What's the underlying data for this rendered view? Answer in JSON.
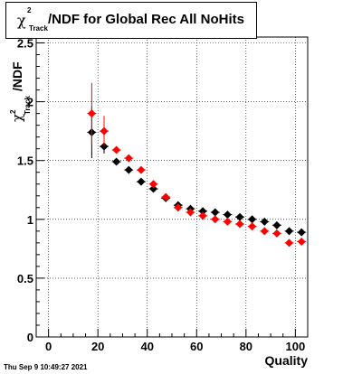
{
  "title": {
    "symbol": "χ",
    "superscript": "2",
    "subscript": "Track",
    "text": "/NDF for Global Rec All NoHits"
  },
  "timestamp": "Thu Sep  9 10:49:27 2021",
  "colors": {
    "series_black": "#000000",
    "series_red": "#ff0000",
    "axis": "#000000"
  },
  "chart_data": {
    "type": "scatter",
    "xlabel": "Quality",
    "ylabel_parts": {
      "symbol": "χ",
      "superscript": "2",
      "subscript": "Track",
      "text": "/NDF"
    },
    "xlim": [
      -5,
      105
    ],
    "ylim": [
      0,
      2.55
    ],
    "xticks": [
      0,
      20,
      40,
      60,
      80,
      100
    ],
    "yticks": [
      0,
      0.5,
      1,
      1.5,
      2,
      2.5
    ],
    "ytick_labels": [
      "0",
      "0.5",
      "1",
      "1.5",
      "2",
      "2.5"
    ],
    "grid": true,
    "series": [
      {
        "color": "#000000",
        "x": [
          17.5,
          22.5,
          27.5,
          32.5,
          37.5,
          42.5,
          47.5,
          52.5,
          57.5,
          62.5,
          67.5,
          72.5,
          77.5,
          82.5,
          87.5,
          92.5,
          97.5,
          102.5
        ],
        "y": [
          1.74,
          1.62,
          1.49,
          1.42,
          1.32,
          1.26,
          1.18,
          1.12,
          1.09,
          1.07,
          1.06,
          1.04,
          1.02,
          1.0,
          0.98,
          0.95,
          0.9,
          0.89
        ],
        "yerr": [
          0.22,
          0.06,
          0.025,
          0.02,
          0.015,
          0.012,
          0.01,
          0.01,
          0.008,
          0.008,
          0.008,
          0.008,
          0.008,
          0.008,
          0.008,
          0.008,
          0.008,
          0.008
        ]
      },
      {
        "color": "#ff0000",
        "x": [
          17.5,
          22.5,
          27.5,
          32.5,
          37.5,
          42.5,
          47.5,
          52.5,
          57.5,
          62.5,
          67.5,
          72.5,
          77.5,
          82.5,
          87.5,
          92.5,
          97.5,
          102.5
        ],
        "y": [
          1.9,
          1.75,
          1.59,
          1.52,
          1.42,
          1.3,
          1.19,
          1.1,
          1.06,
          1.03,
          1.0,
          0.98,
          0.96,
          0.94,
          0.9,
          0.88,
          0.8,
          0.81
        ],
        "yerr": [
          0.26,
          0.13,
          0.03,
          0.02,
          0.015,
          0.012,
          0.01,
          0.01,
          0.008,
          0.008,
          0.008,
          0.008,
          0.008,
          0.008,
          0.008,
          0.008,
          0.008,
          0.008
        ]
      }
    ]
  }
}
